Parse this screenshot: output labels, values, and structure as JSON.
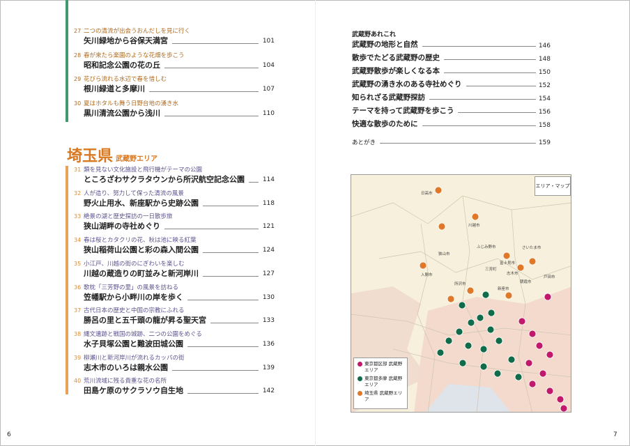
{
  "left_page": {
    "page_number": "6",
    "tokyo_entries": [
      {
        "num": "27",
        "subtitle": "二つの清流が出会うおんだしを見に行く",
        "title": "矢川緑地から谷保天満宮",
        "page": "101"
      },
      {
        "num": "28",
        "subtitle": "春が来たら楽園のような花畑を歩こう",
        "title": "昭和記念公園の花の丘",
        "page": "104"
      },
      {
        "num": "29",
        "subtitle": "花びら流れる水辺で春を惜しむ",
        "title": "根川緑道と多摩川",
        "page": "107"
      },
      {
        "num": "30",
        "subtitle": "夏はホタルも舞う日野台地の湧き水",
        "title": "黒川清流公園から浅川",
        "page": "110"
      }
    ],
    "section_heading": {
      "title": "埼玉県",
      "subtitle": "武蔵野エリア"
    },
    "saitama_entries": [
      {
        "num": "31",
        "subtitle": "類を見ない文化施設と飛行機がテーマの公園",
        "title": "ところざわサクラタウンから所沢航空記念公園",
        "page": "114"
      },
      {
        "num": "32",
        "subtitle": "人が造り、努力して保った清流の風景",
        "title": "野火止用水、新座駅から史跡公園",
        "page": "118"
      },
      {
        "num": "33",
        "subtitle": "絶景の湖と歴史探訪の一日散歩旅",
        "title": "狭山湖畔の寺社めぐり",
        "page": "121"
      },
      {
        "num": "34",
        "subtitle": "春は桜とカタクリの花、秋は池に映る紅葉",
        "title": "狭山稲荷山公園と彩の森入間公園",
        "page": "124"
      },
      {
        "num": "35",
        "subtitle": "小江戸、川越の街のにぎわいを楽しむ",
        "title": "川越の蔵造りの町並みと新河岸川",
        "page": "127"
      },
      {
        "num": "36",
        "subtitle": "歌枕「三芳野の里」の風景を訪ねる",
        "title": "笠幡駅から小畔川の岸を歩く",
        "page": "130"
      },
      {
        "num": "37",
        "subtitle": "古代日本の歴史と中国の宗教にふれる",
        "title": "勝呂の里と五千頭の龍が昇る聖天宮",
        "page": "133"
      },
      {
        "num": "38",
        "subtitle": "縄文遺跡と戦国の城跡、二つの公園をめぐる",
        "title": "水子貝塚公園と難波田城公園",
        "page": "136"
      },
      {
        "num": "39",
        "subtitle": "柳瀬川と新河岸川が流れるカッパの街",
        "title": "志木市のいろは親水公園",
        "page": "139"
      },
      {
        "num": "40",
        "subtitle": "荒川流域に残る貴重な花の名所",
        "title": "田島ケ原のサクラソウ自生地",
        "page": "142"
      }
    ]
  },
  "right_page": {
    "page_number": "7",
    "section_title": "武蔵野あれこれ",
    "items": [
      {
        "title": "武蔵野の地形と自然",
        "page": "146"
      },
      {
        "title": "散歩でたどる武蔵野の歴史",
        "page": "148"
      },
      {
        "title": "武蔵野散歩が楽しくなる本",
        "page": "150"
      },
      {
        "title": "武蔵野の湧き水のある寺社めぐり",
        "page": "152"
      },
      {
        "title": "知られざる武蔵野探訪",
        "page": "154"
      },
      {
        "title": "テーマを持って武蔵野を歩こう",
        "page": "156"
      },
      {
        "title": "快適な散歩のために",
        "page": "158"
      }
    ],
    "afterword": {
      "title": "あとがき",
      "page": "159"
    },
    "map": {
      "title": "エリア・マップ",
      "cities": [
        "日高市",
        "川越市",
        "ふじみ野市",
        "さいたま市",
        "狭山市",
        "入間市",
        "富士見市",
        "志木市",
        "所沢市",
        "朝霞市",
        "戸田市",
        "新座市",
        "三芳町"
      ],
      "legend": [
        {
          "label": "東京都区部 武蔵野エリア",
          "color": "#c2186b"
        },
        {
          "label": "東京都多摩 武蔵野エリア",
          "color": "#0f6b4a"
        },
        {
          "label": "埼玉県 武蔵野エリア",
          "color": "#e0782a"
        }
      ]
    }
  },
  "colors": {
    "tokyo_bar": "#3f9a6e",
    "saitama_bar": "#e9a25a",
    "saitama_accent": "#d9781f"
  }
}
